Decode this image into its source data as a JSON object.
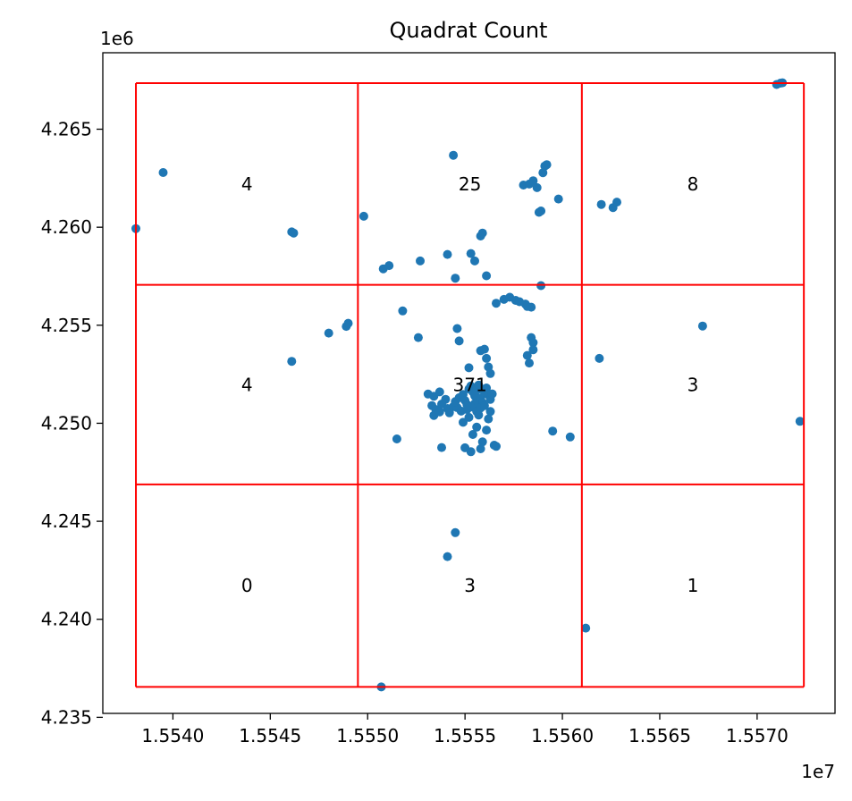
{
  "chart_data": {
    "type": "scatter",
    "title": "Quadrat Count",
    "xlabel": "",
    "ylabel": "",
    "x_offset_label": "1e7",
    "y_offset_label": "1e6",
    "xlim": [
      1.55364,
      1.5574
    ],
    "ylim": [
      4.2352,
      4.2689
    ],
    "x_ticks": [
      1.554,
      1.5545,
      1.555,
      1.5555,
      1.556,
      1.5565,
      1.557
    ],
    "x_tick_labels": [
      "1.5540",
      "1.5545",
      "1.5550",
      "1.5555",
      "1.5560",
      "1.5565",
      "1.5570"
    ],
    "y_ticks": [
      4.235,
      4.24,
      4.245,
      4.25,
      4.255,
      4.26,
      4.265
    ],
    "y_tick_labels": [
      "4.235",
      "4.240",
      "4.245",
      "4.250",
      "4.255",
      "4.260",
      "4.265"
    ],
    "point_color": "#1f77b4",
    "grid_color": "#ff0000",
    "grid": {
      "x_edges": [
        1.55381,
        1.55495,
        1.5561,
        1.55724
      ],
      "y_edges": [
        4.23655,
        4.24688,
        4.25706,
        4.26735
      ]
    },
    "quadrat_counts": [
      {
        "row": 0,
        "col": 0,
        "label": "4"
      },
      {
        "row": 0,
        "col": 1,
        "label": "25"
      },
      {
        "row": 0,
        "col": 2,
        "label": "8"
      },
      {
        "row": 1,
        "col": 0,
        "label": "4"
      },
      {
        "row": 1,
        "col": 1,
        "label": "371"
      },
      {
        "row": 1,
        "col": 2,
        "label": "3"
      },
      {
        "row": 2,
        "col": 0,
        "label": "0"
      },
      {
        "row": 2,
        "col": 1,
        "label": "3"
      },
      {
        "row": 2,
        "col": 2,
        "label": "1"
      }
    ],
    "points": [
      [
        1.55381,
        4.25993
      ],
      [
        1.55395,
        4.26279
      ],
      [
        1.55461,
        4.25976
      ],
      [
        1.55462,
        4.2597
      ],
      [
        1.55498,
        4.26056
      ],
      [
        1.55508,
        4.25788
      ],
      [
        1.55511,
        4.25804
      ],
      [
        1.55527,
        4.25828
      ],
      [
        1.55541,
        4.25861
      ],
      [
        1.55544,
        4.26367
      ],
      [
        1.55553,
        4.25866
      ],
      [
        1.55555,
        4.25828
      ],
      [
        1.55545,
        4.2574
      ],
      [
        1.55558,
        4.25955
      ],
      [
        1.55559,
        4.2597
      ],
      [
        1.55561,
        4.25752
      ],
      [
        1.5558,
        4.26215
      ],
      [
        1.55583,
        4.2622
      ],
      [
        1.55585,
        4.26237
      ],
      [
        1.55587,
        4.26202
      ],
      [
        1.55588,
        4.26076
      ],
      [
        1.55589,
        4.26083
      ],
      [
        1.5559,
        4.26278
      ],
      [
        1.55591,
        4.26312
      ],
      [
        1.55592,
        4.26319
      ],
      [
        1.55598,
        4.26144
      ],
      [
        1.5562,
        4.26116
      ],
      [
        1.55626,
        4.261
      ],
      [
        1.55628,
        4.26128
      ],
      [
        1.5571,
        4.26728
      ],
      [
        1.55712,
        4.26735
      ],
      [
        1.55713,
        4.26737
      ],
      [
        1.55461,
        4.25316
      ],
      [
        1.5548,
        4.2546
      ],
      [
        1.55489,
        4.25494
      ],
      [
        1.5549,
        4.2551
      ],
      [
        1.55518,
        4.25573
      ],
      [
        1.55526,
        4.25437
      ],
      [
        1.55546,
        4.25483
      ],
      [
        1.55566,
        4.25612
      ],
      [
        1.5557,
        4.25632
      ],
      [
        1.55573,
        4.25643
      ],
      [
        1.55576,
        4.25627
      ],
      [
        1.55578,
        4.2562
      ],
      [
        1.55581,
        4.25608
      ],
      [
        1.55582,
        4.25596
      ],
      [
        1.55584,
        4.25592
      ],
      [
        1.55589,
        4.25702
      ],
      [
        1.55583,
        4.25307
      ],
      [
        1.55584,
        4.25437
      ],
      [
        1.55585,
        4.25411
      ],
      [
        1.55585,
        4.25375
      ],
      [
        1.55582,
        4.25346
      ],
      [
        1.55547,
        4.2542
      ],
      [
        1.55558,
        4.2537
      ],
      [
        1.5556,
        4.25378
      ],
      [
        1.55561,
        4.25331
      ],
      [
        1.55562,
        4.25287
      ],
      [
        1.55563,
        4.25254
      ],
      [
        1.55552,
        4.25283
      ],
      [
        1.55531,
        4.25149
      ],
      [
        1.55534,
        4.25138
      ],
      [
        1.55537,
        4.2516
      ],
      [
        1.5554,
        4.25122
      ],
      [
        1.55533,
        4.2509
      ],
      [
        1.55535,
        4.2507
      ],
      [
        1.55538,
        4.25098
      ],
      [
        1.55541,
        4.25075
      ],
      [
        1.55544,
        4.25085
      ],
      [
        1.55546,
        4.2508
      ],
      [
        1.55548,
        4.25062
      ],
      [
        1.55534,
        4.2504
      ],
      [
        1.55537,
        4.25058
      ],
      [
        1.55542,
        4.25053
      ],
      [
        1.55545,
        4.2511
      ],
      [
        1.55547,
        4.2513
      ],
      [
        1.55549,
        4.25147
      ],
      [
        1.5555,
        4.25116
      ],
      [
        1.55551,
        4.25096
      ],
      [
        1.55552,
        4.25175
      ],
      [
        1.55553,
        4.2519
      ],
      [
        1.55554,
        4.2516
      ],
      [
        1.55555,
        4.2514
      ],
      [
        1.55556,
        4.25168
      ],
      [
        1.55557,
        4.25195
      ],
      [
        1.55558,
        4.25128
      ],
      [
        1.55559,
        4.25105
      ],
      [
        1.5556,
        4.25158
      ],
      [
        1.55561,
        4.2518
      ],
      [
        1.55562,
        4.25145
      ],
      [
        1.55563,
        4.25122
      ],
      [
        1.55564,
        4.2515
      ],
      [
        1.55555,
        4.251
      ],
      [
        1.55553,
        4.25083
      ],
      [
        1.55551,
        4.2507
      ],
      [
        1.55556,
        4.2506
      ],
      [
        1.55558,
        4.25078
      ],
      [
        1.5556,
        4.2509
      ],
      [
        1.55557,
        4.25042
      ],
      [
        1.55552,
        4.2503
      ],
      [
        1.55549,
        4.25005
      ],
      [
        1.55556,
        4.2498
      ],
      [
        1.55554,
        4.24943
      ],
      [
        1.5555,
        4.24875
      ],
      [
        1.55553,
        4.24855
      ],
      [
        1.55558,
        4.2487
      ],
      [
        1.55559,
        4.24905
      ],
      [
        1.55561,
        4.24965
      ],
      [
        1.55562,
        4.25022
      ],
      [
        1.55563,
        4.2506
      ],
      [
        1.55565,
        4.24888
      ],
      [
        1.55566,
        4.24882
      ],
      [
        1.55538,
        4.24876
      ],
      [
        1.55515,
        4.2492
      ],
      [
        1.55595,
        4.2496
      ],
      [
        1.55604,
        4.2493
      ],
      [
        1.55619,
        4.25331
      ],
      [
        1.55672,
        4.25496
      ],
      [
        1.55722,
        4.2501
      ],
      [
        1.55545,
        4.24442
      ],
      [
        1.55541,
        4.2432
      ],
      [
        1.55507,
        4.23655
      ],
      [
        1.55612,
        4.23955
      ]
    ]
  }
}
